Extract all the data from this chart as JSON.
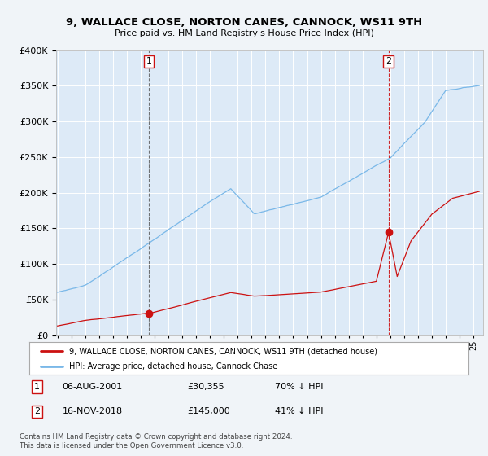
{
  "title1": "9, WALLACE CLOSE, NORTON CANES, CANNOCK, WS11 9TH",
  "title2": "Price paid vs. HM Land Registry's House Price Index (HPI)",
  "background_color": "#f0f4f8",
  "plot_bg_color": "#ddeaf7",
  "hpi_color": "#7ab8e8",
  "price_color": "#cc1111",
  "marker_color": "#cc1111",
  "sale1_date": "06-AUG-2001",
  "sale1_price": 30355,
  "sale1_hpi_pct": "70% ↓ HPI",
  "sale2_date": "16-NOV-2018",
  "sale2_price": 145000,
  "sale2_hpi_pct": "41% ↓ HPI",
  "legend_label1": "9, WALLACE CLOSE, NORTON CANES, CANNOCK, WS11 9TH (detached house)",
  "legend_label2": "HPI: Average price, detached house, Cannock Chase",
  "footnote1": "Contains HM Land Registry data © Crown copyright and database right 2024.",
  "footnote2": "This data is licensed under the Open Government Licence v3.0.",
  "ylim_max": 400000,
  "ylim_min": 0,
  "sale1_year": 2001.58,
  "sale2_year": 2018.88
}
